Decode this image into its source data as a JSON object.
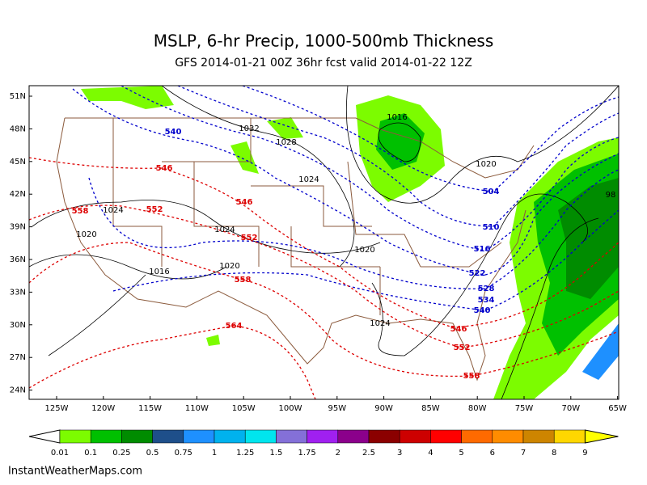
{
  "header": {
    "title": "MSLP, 6-hr Precip, 1000-500mb Thickness",
    "subtitle": "GFS 2014-01-21 00Z 36hr fcst valid 2014-01-22 12Z"
  },
  "map": {
    "lat_labels": [
      "51N",
      "48N",
      "45N",
      "42N",
      "39N",
      "36N",
      "33N",
      "30N",
      "27N",
      "24N"
    ],
    "lon_labels": [
      "125W",
      "120W",
      "115W",
      "110W",
      "105W",
      "100W",
      "95W",
      "90W",
      "85W",
      "80W",
      "75W",
      "70W",
      "65W"
    ],
    "pressure_labels": [
      "1032",
      "1028",
      "1024",
      "1016",
      "1020",
      "1024",
      "1020",
      "1024",
      "1020",
      "1016",
      "1020",
      "1024",
      "98"
    ],
    "thickness_labels": [
      "540",
      "504",
      "510",
      "516",
      "522",
      "528",
      "534",
      "540",
      "546",
      "546",
      "552",
      "558",
      "552",
      "558",
      "564",
      "546",
      "552",
      "558"
    ],
    "thickness_colors": [
      "#0000cc",
      "#0000cc",
      "#0000cc",
      "#0000cc",
      "#0000cc",
      "#0000cc",
      "#0000cc",
      "#0000cc",
      "#dd0000",
      "#dd0000",
      "#dd0000",
      "#dd0000",
      "#dd0000",
      "#dd0000",
      "#dd0000",
      "#dd0000",
      "#dd0000",
      "#dd0000"
    ]
  },
  "colorbar": {
    "labels": [
      "0.01",
      "0.1",
      "0.25",
      "0.5",
      "0.75",
      "1",
      "1.25",
      "1.5",
      "1.75",
      "2",
      "2.5",
      "3",
      "4",
      "5",
      "6",
      "7",
      "8",
      "9"
    ],
    "colors": [
      "#ffffff",
      "#7cfc00",
      "#00c000",
      "#008c00",
      "#1e4f8a",
      "#1e90ff",
      "#00b2ee",
      "#00e5ee",
      "#8470d8",
      "#a020f0",
      "#8b008b",
      "#8b0000",
      "#cd0000",
      "#ff0000",
      "#ff6a00",
      "#ff8c00",
      "#cd8500",
      "#ffd700",
      "#ffff00"
    ]
  },
  "footer": "InstantWeatherMaps.com"
}
